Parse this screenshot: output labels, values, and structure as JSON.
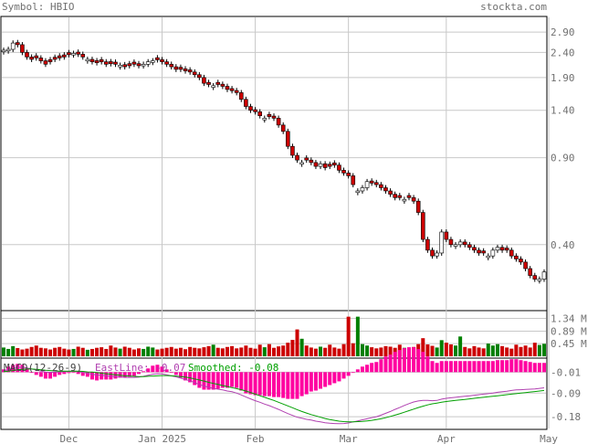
{
  "header": {
    "symbol": "Symbol: HBIO",
    "site": "stockta.com"
  },
  "colors": {
    "up": "#008000",
    "down": "#cc0000",
    "grid": "#c8c8c8",
    "text": "#707070",
    "eastline": "#b040b0",
    "smoothed": "#00a000",
    "hist": "#ff00a0"
  },
  "chart_data": [
    {
      "type": "candlestick",
      "panel": "price",
      "y_scale": "log",
      "ylim": [
        0.22,
        3.3
      ],
      "y_ticks": [
        2.9,
        2.4,
        1.9,
        1.4,
        0.9,
        0.4
      ],
      "y_tick_labels": [
        "2.90",
        "2.40",
        "1.90",
        "1.40",
        "0.90",
        "0.40"
      ],
      "x_ticks": [
        "Dec",
        "Jan 2025",
        "Feb",
        "Mar",
        "Apr",
        "May"
      ],
      "x_tick_index": [
        14,
        34,
        54,
        74,
        95,
        117
      ],
      "close": [
        2.45,
        2.47,
        2.62,
        2.58,
        2.4,
        2.3,
        2.25,
        2.28,
        2.22,
        2.15,
        2.2,
        2.25,
        2.28,
        2.3,
        2.35,
        2.38,
        2.36,
        2.3,
        2.25,
        2.2,
        2.18,
        2.2,
        2.15,
        2.16,
        2.15,
        2.13,
        2.1,
        2.12,
        2.15,
        2.12,
        2.15,
        2.2,
        2.22,
        2.24,
        2.2,
        2.15,
        2.1,
        2.05,
        2.05,
        2.02,
        2.0,
        1.95,
        1.9,
        1.8,
        1.78,
        1.76,
        1.78,
        1.75,
        1.7,
        1.68,
        1.65,
        1.55,
        1.45,
        1.4,
        1.38,
        1.33,
        1.3,
        1.32,
        1.3,
        1.22,
        1.15,
        1.0,
        0.92,
        0.88,
        0.86,
        0.88,
        0.86,
        0.83,
        0.85,
        0.82,
        0.83,
        0.84,
        0.8,
        0.78,
        0.76,
        0.7,
        0.66,
        0.68,
        0.72,
        0.71,
        0.7,
        0.68,
        0.66,
        0.64,
        0.62,
        0.62,
        0.61,
        0.62,
        0.6,
        0.54,
        0.42,
        0.38,
        0.36,
        0.37,
        0.45,
        0.42,
        0.4,
        0.4,
        0.41,
        0.4,
        0.39,
        0.38,
        0.37,
        0.37,
        0.36,
        0.38,
        0.39,
        0.38,
        0.38,
        0.36,
        0.35,
        0.34,
        0.32,
        0.3,
        0.29,
        0.29,
        0.31
      ],
      "up_days": [
        0,
        1,
        2,
        15,
        18,
        25,
        30,
        31,
        32,
        45,
        56,
        64,
        68,
        76,
        77,
        78,
        86,
        93,
        94,
        97,
        98,
        104,
        105,
        106,
        115,
        116
      ]
    },
    {
      "type": "bar",
      "panel": "volume",
      "y_ticks": [
        1.34,
        0.89,
        0.45
      ],
      "y_tick_labels": [
        "1.34 M",
        "0.89 M",
        "0.45 M"
      ],
      "ylim": [
        0,
        1.55
      ],
      "values_m": [
        0.31,
        0.26,
        0.36,
        0.29,
        0.24,
        0.27,
        0.33,
        0.38,
        0.3,
        0.28,
        0.24,
        0.3,
        0.33,
        0.27,
        0.24,
        0.26,
        0.34,
        0.3,
        0.23,
        0.26,
        0.3,
        0.32,
        0.26,
        0.38,
        0.31,
        0.27,
        0.34,
        0.3,
        0.24,
        0.28,
        0.26,
        0.34,
        0.31,
        0.24,
        0.27,
        0.3,
        0.33,
        0.27,
        0.3,
        0.25,
        0.33,
        0.3,
        0.28,
        0.32,
        0.36,
        0.41,
        0.3,
        0.28,
        0.33,
        0.36,
        0.28,
        0.31,
        0.38,
        0.3,
        0.27,
        0.41,
        0.32,
        0.43,
        0.3,
        0.35,
        0.38,
        0.48,
        0.58,
        0.95,
        0.62,
        0.38,
        0.31,
        0.27,
        0.34,
        0.3,
        0.41,
        0.31,
        0.27,
        0.43,
        1.4,
        0.46,
        1.4,
        0.43,
        0.38,
        0.32,
        0.28,
        0.31,
        0.36,
        0.34,
        0.3,
        0.41,
        0.3,
        0.28,
        0.33,
        0.43,
        0.64,
        0.42,
        0.37,
        0.31,
        0.57,
        0.48,
        0.42,
        0.38,
        0.7,
        0.33,
        0.28,
        0.36,
        0.31,
        0.28,
        0.45,
        0.38,
        0.43,
        0.36,
        0.31,
        0.27,
        0.41,
        0.33,
        0.38,
        0.31,
        0.48,
        0.4,
        0.44
      ]
    },
    {
      "type": "line",
      "panel": "macd",
      "legend": {
        "macd": "MACD(12-26-9)",
        "eastline": "EastLine: -0.07",
        "smoothed": "Smoothed: -0.08"
      },
      "y_ticks": [
        -0.01,
        -0.09,
        -0.18
      ],
      "y_tick_labels": [
        "-0.01",
        "-0.09",
        "-0.18"
      ],
      "ylim": [
        -0.225,
        0.04
      ],
      "series": [
        {
          "name": "EastLine",
          "values": [
            -0.005,
            0,
            0.004,
            0.008,
            0.009,
            0.006,
            0.002,
            -0.002,
            -0.006,
            -0.01,
            -0.011,
            -0.01,
            -0.009,
            -0.008,
            -0.007,
            -0.006,
            -0.008,
            -0.011,
            -0.014,
            -0.018,
            -0.021,
            -0.022,
            -0.024,
            -0.026,
            -0.027,
            -0.028,
            -0.03,
            -0.03,
            -0.03,
            -0.029,
            -0.026,
            -0.022,
            -0.018,
            -0.016,
            -0.017,
            -0.02,
            -0.024,
            -0.028,
            -0.033,
            -0.038,
            -0.043,
            -0.05,
            -0.057,
            -0.063,
            -0.068,
            -0.072,
            -0.075,
            -0.078,
            -0.082,
            -0.085,
            -0.09,
            -0.097,
            -0.105,
            -0.112,
            -0.119,
            -0.125,
            -0.132,
            -0.138,
            -0.145,
            -0.152,
            -0.16,
            -0.168,
            -0.175,
            -0.182,
            -0.186,
            -0.19,
            -0.193,
            -0.197,
            -0.2,
            -0.203,
            -0.205,
            -0.206,
            -0.207,
            -0.206,
            -0.204,
            -0.2,
            -0.196,
            -0.192,
            -0.188,
            -0.184,
            -0.18,
            -0.174,
            -0.167,
            -0.16,
            -0.152,
            -0.145,
            -0.137,
            -0.13,
            -0.124,
            -0.12,
            -0.118,
            -0.118,
            -0.119,
            -0.118,
            -0.113,
            -0.11,
            -0.108,
            -0.106,
            -0.104,
            -0.102,
            -0.1,
            -0.098,
            -0.096,
            -0.094,
            -0.092,
            -0.09,
            -0.087,
            -0.085,
            -0.083,
            -0.08,
            -0.078,
            -0.077,
            -0.076,
            -0.075,
            -0.074,
            -0.072,
            -0.07
          ]
        },
        {
          "name": "Smoothed",
          "values": [
            -0.008,
            -0.006,
            -0.004,
            -0.001,
            0.001,
            0.002,
            0.002,
            0.001,
            -0.001,
            -0.003,
            -0.004,
            -0.005,
            -0.006,
            -0.006,
            -0.006,
            -0.006,
            -0.006,
            -0.007,
            -0.009,
            -0.01,
            -0.012,
            -0.014,
            -0.016,
            -0.018,
            -0.02,
            -0.022,
            -0.024,
            -0.025,
            -0.026,
            -0.027,
            -0.027,
            -0.026,
            -0.025,
            -0.024,
            -0.023,
            -0.023,
            -0.024,
            -0.025,
            -0.027,
            -0.029,
            -0.032,
            -0.036,
            -0.04,
            -0.044,
            -0.049,
            -0.053,
            -0.057,
            -0.061,
            -0.065,
            -0.069,
            -0.073,
            -0.077,
            -0.082,
            -0.088,
            -0.094,
            -0.1,
            -0.106,
            -0.112,
            -0.118,
            -0.125,
            -0.132,
            -0.139,
            -0.146,
            -0.153,
            -0.16,
            -0.166,
            -0.172,
            -0.177,
            -0.182,
            -0.187,
            -0.191,
            -0.194,
            -0.197,
            -0.199,
            -0.2,
            -0.2,
            -0.199,
            -0.198,
            -0.196,
            -0.194,
            -0.191,
            -0.188,
            -0.184,
            -0.179,
            -0.174,
            -0.169,
            -0.163,
            -0.157,
            -0.151,
            -0.145,
            -0.14,
            -0.135,
            -0.131,
            -0.128,
            -0.125,
            -0.122,
            -0.12,
            -0.118,
            -0.116,
            -0.114,
            -0.112,
            -0.11,
            -0.108,
            -0.106,
            -0.104,
            -0.102,
            -0.1,
            -0.098,
            -0.096,
            -0.094,
            -0.092,
            -0.09,
            -0.088,
            -0.086,
            -0.084,
            -0.082,
            -0.08
          ]
        }
      ]
    }
  ]
}
